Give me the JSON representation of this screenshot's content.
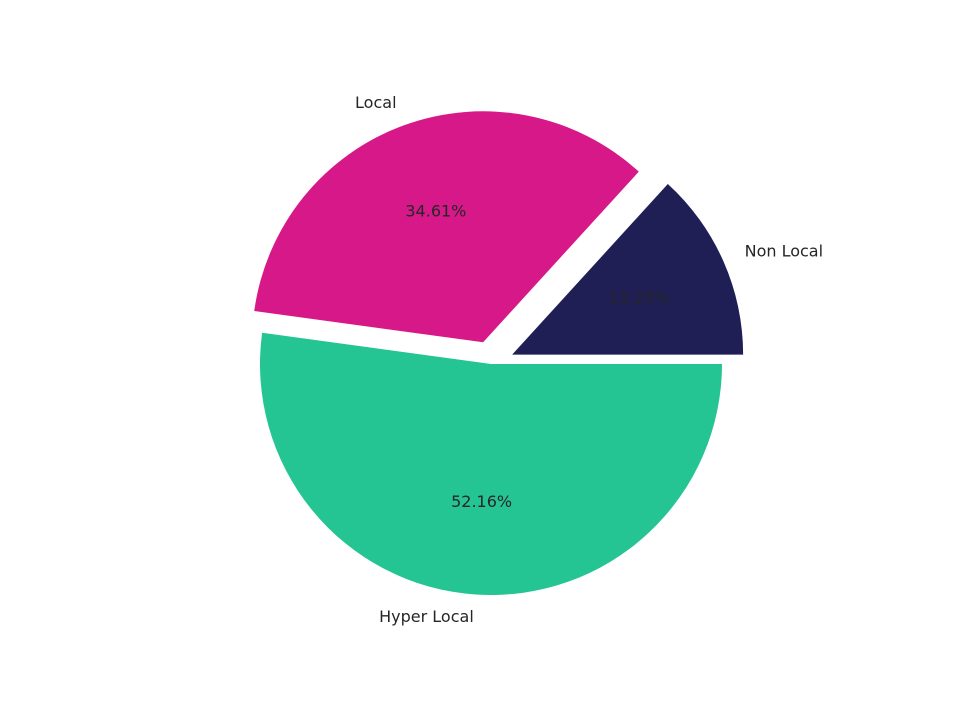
{
  "chart_data": {
    "type": "pie",
    "title": "",
    "slices": [
      {
        "label": "Non Local",
        "value": 13.23,
        "pct_label": "13.23%",
        "color": "#1f1f55",
        "explode": 0.1
      },
      {
        "label": "Local",
        "value": 34.61,
        "pct_label": "34.61%",
        "color": "#d71888",
        "explode": 0.1
      },
      {
        "label": "Hyper Local",
        "value": 52.16,
        "pct_label": "52.16%",
        "color": "#25c493",
        "explode": 0.0
      }
    ],
    "start_angle_deg": 0,
    "direction": "counterclockwise",
    "legend": "none"
  }
}
